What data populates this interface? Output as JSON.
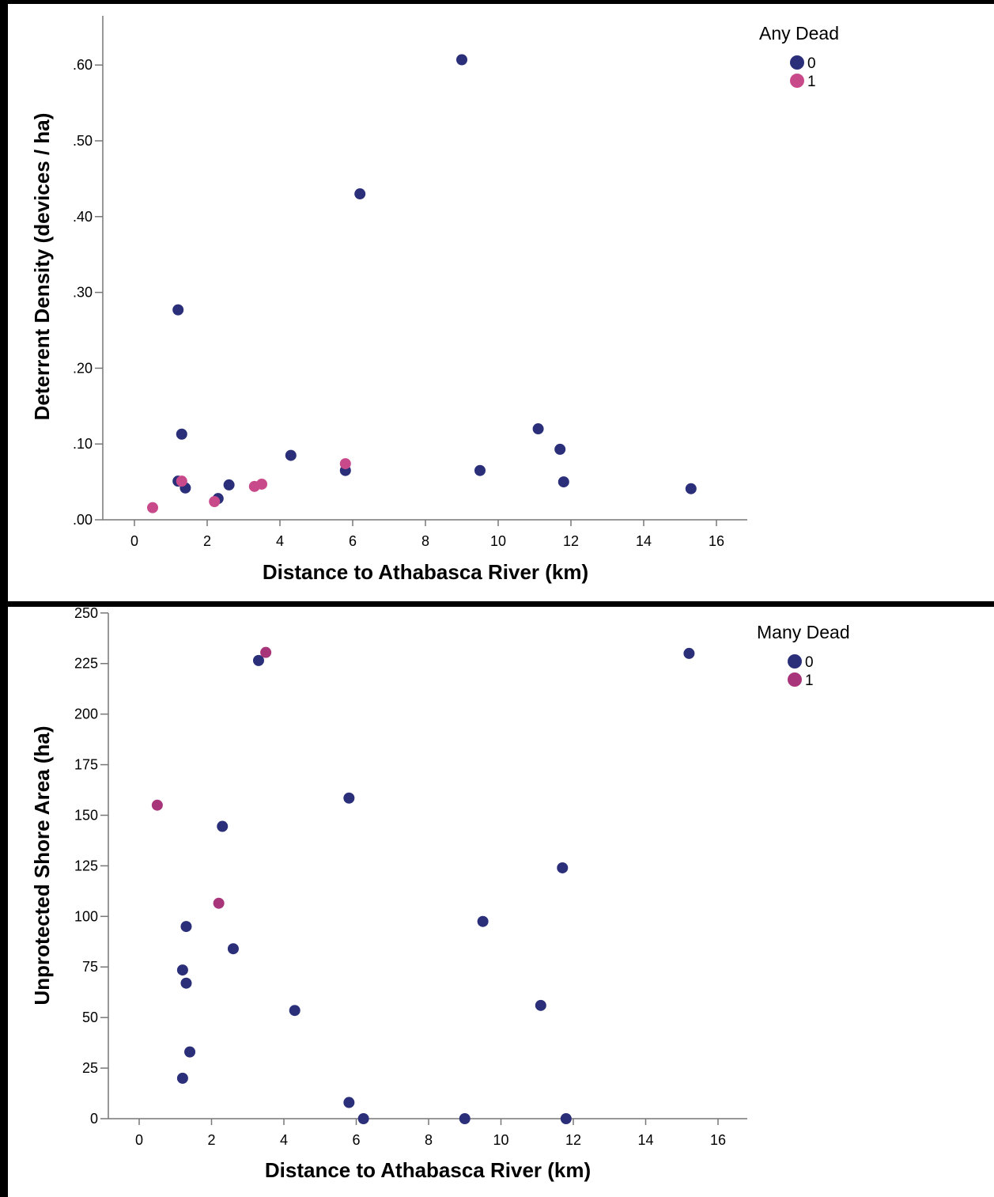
{
  "chart_data": [
    {
      "type": "scatter",
      "title": "",
      "xlabel": "Distance to Athabasca River (km)",
      "ylabel": "Deterrent Density (devices / ha)",
      "xlim": [
        -1,
        17
      ],
      "ylim": [
        0,
        0.66
      ],
      "x_ticks": [
        0,
        2,
        4,
        6,
        8,
        10,
        12,
        14,
        16
      ],
      "x_tick_labels": [
        "0",
        "2",
        "4",
        "6",
        "8",
        "10",
        "12",
        "14",
        "16"
      ],
      "y_ticks": [
        0,
        0.1,
        0.2,
        0.3,
        0.4,
        0.5,
        0.6
      ],
      "y_tick_labels": [
        ".00",
        ".10",
        ".20",
        ".30",
        ".40",
        ".50",
        ".60"
      ],
      "grid": false,
      "legend": {
        "title": "Any Dead",
        "placement": "top-right",
        "entries": [
          "0",
          "1"
        ]
      },
      "colors": {
        "0": "#2b2f7a",
        "1": "#c94a8a"
      },
      "series": [
        {
          "name": "0",
          "points": [
            [
              9.0,
              0.607
            ],
            [
              6.2,
              0.43
            ],
            [
              1.2,
              0.277
            ],
            [
              1.3,
              0.113
            ],
            [
              1.2,
              0.051
            ],
            [
              1.4,
              0.042
            ],
            [
              2.3,
              0.028
            ],
            [
              2.6,
              0.046
            ],
            [
              4.3,
              0.085
            ],
            [
              5.8,
              0.065
            ],
            [
              9.5,
              0.065
            ],
            [
              11.1,
              0.12
            ],
            [
              11.7,
              0.093
            ],
            [
              11.8,
              0.05
            ],
            [
              15.3,
              0.041
            ]
          ]
        },
        {
          "name": "1",
          "points": [
            [
              0.5,
              0.016
            ],
            [
              1.3,
              0.051
            ],
            [
              2.2,
              0.024
            ],
            [
              3.3,
              0.044
            ],
            [
              3.5,
              0.047
            ],
            [
              5.8,
              0.074
            ]
          ]
        }
      ]
    },
    {
      "type": "scatter",
      "title": "",
      "xlabel": "Distance to Athabasca River (km)",
      "ylabel": "Unprotected Shore Area (ha)",
      "xlim": [
        -1,
        17
      ],
      "ylim": [
        0,
        250
      ],
      "x_ticks": [
        0,
        2,
        4,
        6,
        8,
        10,
        12,
        14,
        16
      ],
      "x_tick_labels": [
        "0",
        "2",
        "4",
        "6",
        "8",
        "10",
        "12",
        "14",
        "16"
      ],
      "y_ticks": [
        0,
        25,
        50,
        75,
        100,
        125,
        150,
        175,
        200,
        225,
        250
      ],
      "y_tick_labels": [
        "0",
        "25",
        "50",
        "75",
        "100",
        "125",
        "150",
        "175",
        "200",
        "225",
        "250"
      ],
      "grid": false,
      "legend": {
        "title": "Many Dead",
        "placement": "top-right",
        "entries": [
          "0",
          "1"
        ]
      },
      "colors": {
        "0": "#2b2f7a",
        "1": "#a8357a"
      },
      "series": [
        {
          "name": "0",
          "points": [
            [
              3.3,
              226.5
            ],
            [
              15.2,
              230
            ],
            [
              5.8,
              158.5
            ],
            [
              2.3,
              144.5
            ],
            [
              11.7,
              124
            ],
            [
              1.3,
              95
            ],
            [
              9.5,
              97.5
            ],
            [
              2.6,
              84
            ],
            [
              1.2,
              73.5
            ],
            [
              1.3,
              67
            ],
            [
              4.3,
              53.5
            ],
            [
              11.1,
              56
            ],
            [
              1.4,
              33
            ],
            [
              1.2,
              20
            ],
            [
              5.8,
              8
            ],
            [
              6.2,
              0
            ],
            [
              9.0,
              0
            ],
            [
              11.8,
              0
            ]
          ]
        },
        {
          "name": "1",
          "points": [
            [
              3.5,
              230.5
            ],
            [
              0.5,
              155
            ],
            [
              2.2,
              106.5
            ]
          ]
        }
      ]
    }
  ]
}
